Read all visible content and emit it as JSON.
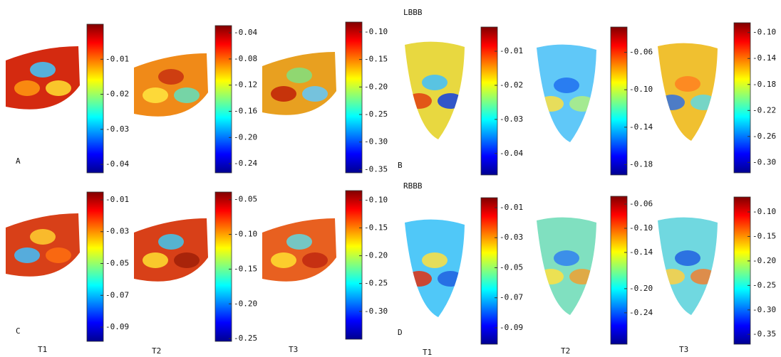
{
  "figure": {
    "row_titles": [
      "LBBB",
      "RBBB"
    ],
    "panel_letters": [
      "A",
      "B",
      "C",
      "D"
    ],
    "column_labels": [
      "T1",
      "T2",
      "T3",
      "T1",
      "T2",
      "T3"
    ],
    "colorbars": [
      {
        "clim": [
          -0.0424,
          0
        ],
        "ticks": [
          -0.01,
          -0.02,
          -0.03,
          -0.04
        ]
      },
      {
        "clim": [
          -0.254,
          -0.029
        ],
        "ticks": [
          -0.04,
          -0.08,
          -0.12,
          -0.16,
          {
            "value": -0.2,
            "label": "-0.20"
          },
          -0.24
        ]
      },
      {
        "clim": [
          -0.356,
          -0.082
        ],
        "ticks": [
          {
            "value": -0.1,
            "label": "-0.10"
          },
          -0.15,
          {
            "value": -0.2,
            "label": "-0.20"
          },
          -0.25,
          {
            "value": -0.3,
            "label": "-0.30"
          },
          -0.35
        ]
      },
      {
        "clim": [
          -0.0463,
          -0.0029
        ],
        "ticks": [
          -0.01,
          -0.02,
          -0.03,
          -0.04
        ]
      },
      {
        "clim": [
          -0.191,
          -0.033
        ],
        "ticks": [
          -0.06,
          {
            "value": -0.1,
            "label": "-0.10"
          },
          -0.14,
          -0.18
        ]
      },
      {
        "clim": [
          -0.316,
          -0.085
        ],
        "ticks": [
          {
            "value": -0.1,
            "label": "-0.10"
          },
          -0.14,
          -0.18,
          -0.22,
          -0.26,
          {
            "value": -0.3,
            "label": "-0.30"
          }
        ]
      },
      {
        "clim": [
          -0.0989,
          -0.0051
        ],
        "ticks": [
          -0.01,
          -0.03,
          -0.05,
          -0.07,
          -0.09
        ]
      },
      {
        "clim": [
          -0.254,
          -0.039
        ],
        "ticks": [
          -0.05,
          {
            "value": -0.1,
            "label": "-0.10"
          },
          -0.15,
          {
            "value": -0.2,
            "label": "-0.20"
          },
          -0.25
        ]
      },
      {
        "clim": [
          -0.35,
          -0.083
        ],
        "ticks": [
          {
            "value": -0.1,
            "label": "-0.10"
          },
          -0.15,
          {
            "value": -0.2,
            "label": "-0.20"
          },
          -0.25,
          {
            "value": -0.3,
            "label": "-0.30"
          }
        ]
      },
      {
        "clim": [
          -0.1009,
          -0.0034
        ],
        "ticks": [
          -0.01,
          -0.03,
          -0.05,
          -0.07,
          -0.09
        ]
      },
      {
        "clim": [
          -0.292,
          -0.047
        ],
        "ticks": [
          -0.06,
          {
            "value": -0.1,
            "label": "-0.10"
          },
          -0.14,
          {
            "value": -0.2,
            "label": "-0.20"
          },
          -0.24
        ]
      },
      {
        "clim": [
          -0.37,
          -0.0695
        ],
        "ticks": [
          {
            "value": -0.1,
            "label": "-0.10"
          },
          -0.15,
          {
            "value": -0.2,
            "label": "-0.20"
          },
          -0.25,
          {
            "value": -0.3,
            "label": "-0.30"
          },
          -0.35
        ]
      }
    ]
  }
}
